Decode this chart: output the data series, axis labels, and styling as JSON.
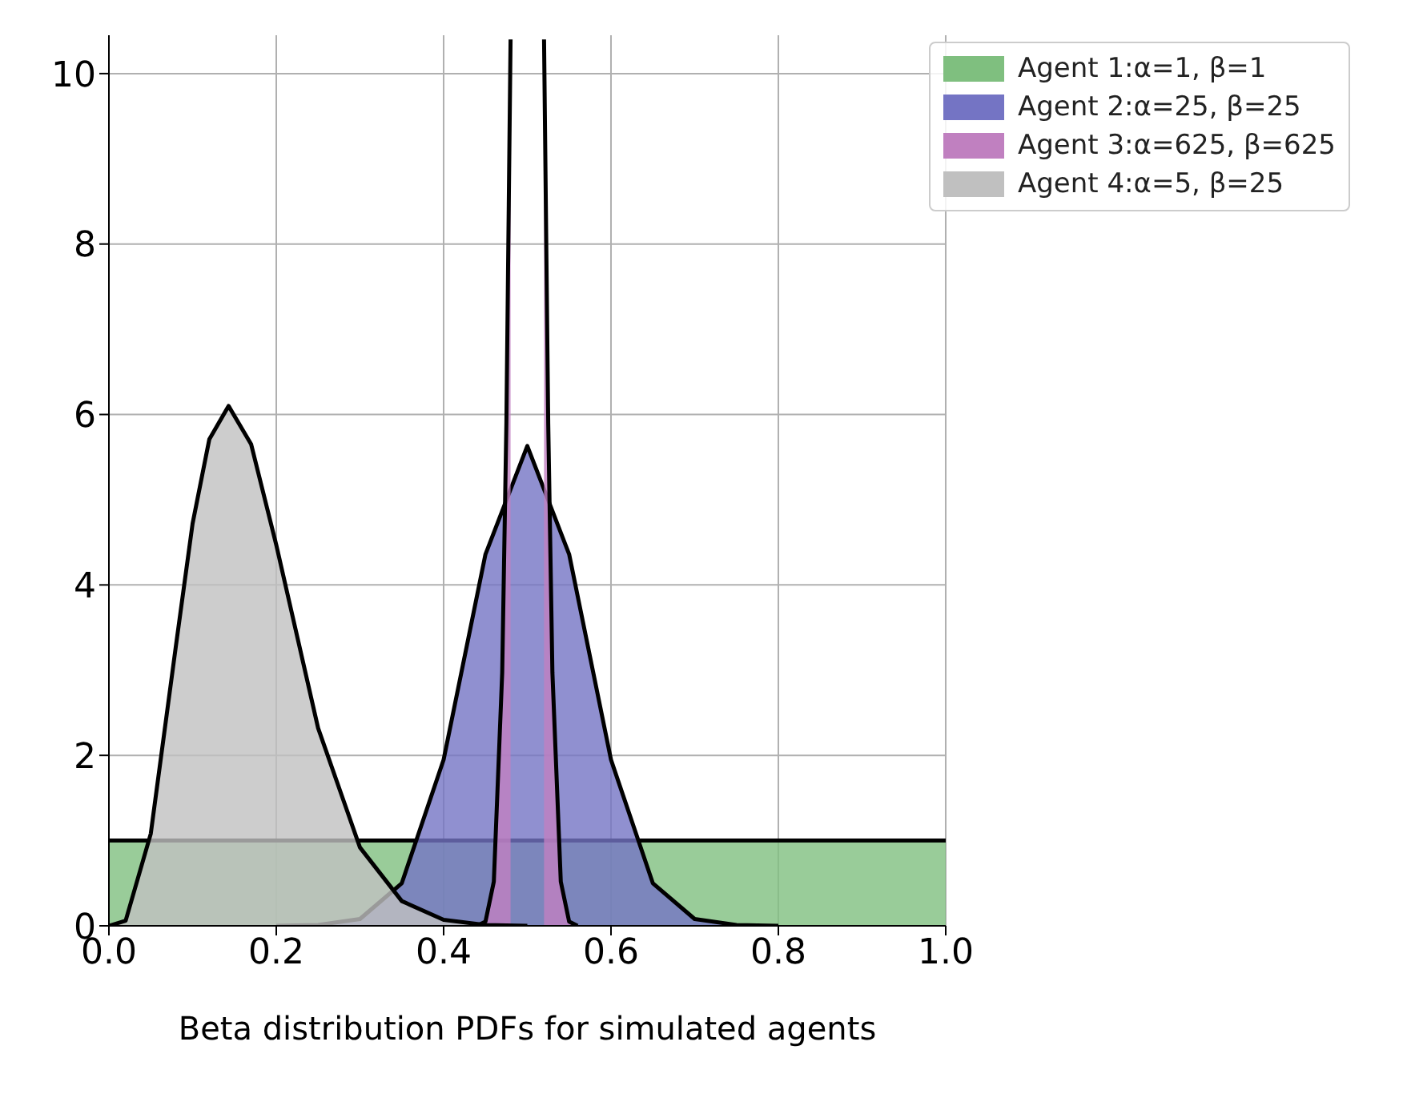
{
  "chart_data": {
    "type": "area",
    "xlabel": "Beta distribution PDFs for simulated agents",
    "xlim": [
      0,
      1
    ],
    "ylim": [
      0,
      10.45
    ],
    "xticks": [
      {
        "value": 0,
        "label": "0.0"
      },
      {
        "value": 0.2,
        "label": "0.2"
      },
      {
        "value": 0.4,
        "label": "0.4"
      },
      {
        "value": 0.6,
        "label": "0.6"
      },
      {
        "value": 0.8,
        "label": "0.8"
      },
      {
        "value": 1,
        "label": "1.0"
      }
    ],
    "yticks": [
      0,
      2,
      4,
      6,
      8,
      10
    ],
    "grid": true,
    "legend": "top right",
    "series": [
      {
        "name": "Agent 1:α=1, β=1",
        "color": "#7fbf7f",
        "x": [
          0,
          1
        ],
        "values": [
          1,
          1
        ]
      },
      {
        "name": "Agent 2:α=25, β=25",
        "color": "#7474c4",
        "x": [
          0.2,
          0.25,
          0.3,
          0.35,
          0.4,
          0.45,
          0.5,
          0.55,
          0.6,
          0.65,
          0.7,
          0.75,
          0.8
        ],
        "values": [
          0,
          0.01,
          0.08,
          0.5,
          1.95,
          4.36,
          5.63,
          4.36,
          1.95,
          0.5,
          0.08,
          0.01,
          0
        ]
      },
      {
        "name": "Agent 3:α=625, β=625",
        "color": "#c080c0",
        "x": [
          0.44,
          0.45,
          0.46,
          0.47,
          0.475,
          0.48,
          0.5,
          0.52,
          0.525,
          0.53,
          0.54,
          0.55,
          0.56
        ],
        "values": [
          0,
          0.05,
          0.52,
          2.97,
          5.9,
          10.4,
          null,
          10.4,
          5.9,
          2.97,
          0.52,
          0.05,
          0
        ]
      },
      {
        "name": "Agent 4:α=5, β=25",
        "color": "#c0c0c0",
        "x": [
          0,
          0.02,
          0.05,
          0.08,
          0.1,
          0.12,
          0.143,
          0.17,
          0.2,
          0.25,
          0.3,
          0.35,
          0.4,
          0.45,
          0.5
        ],
        "values": [
          0,
          0.06,
          1.08,
          3.28,
          4.72,
          5.71,
          6.1,
          5.65,
          4.47,
          2.32,
          0.92,
          0.29,
          0.07,
          0.01,
          0
        ]
      }
    ]
  }
}
